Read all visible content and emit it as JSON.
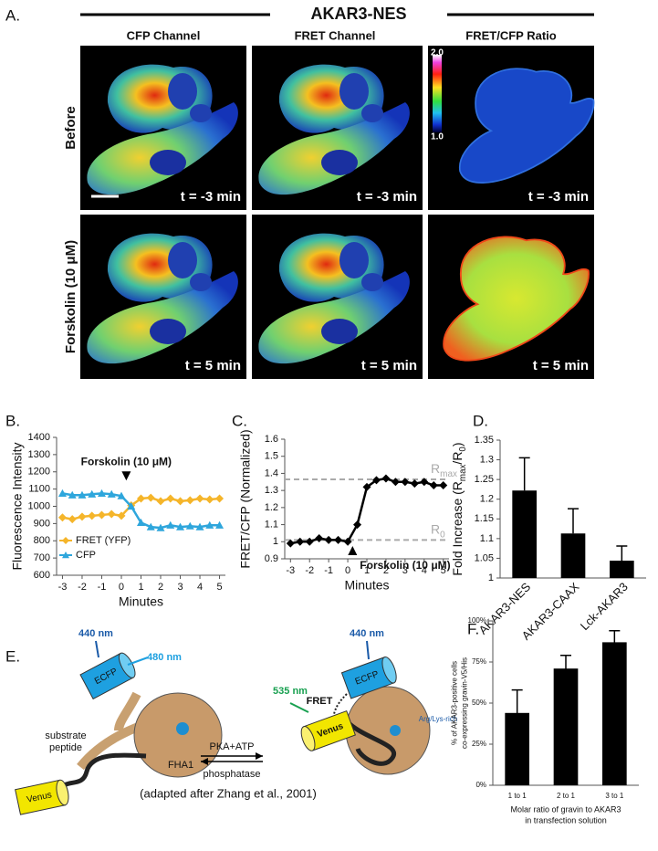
{
  "panel_a": {
    "label": "A.",
    "title": "AKAR3-NES",
    "columns": [
      "CFP Channel",
      "FRET Channel",
      "FRET/CFP Ratio"
    ],
    "rows": [
      {
        "label": "Before",
        "times": [
          "t = -3 min",
          "t = -3 min",
          "t = -3 min"
        ]
      },
      {
        "label": "Forskolin (10 μM)",
        "times": [
          "t = 5 min",
          "t = 5 min",
          "t = 5 min"
        ]
      }
    ],
    "colorbar": {
      "max": "2.0",
      "min": "1.0"
    }
  },
  "panel_e": {
    "label": "E.",
    "left_excitation": "440 nm",
    "left_donor": "ECFP",
    "left_emission": "480 nm",
    "substrate_peptide": [
      "substrate",
      "peptide"
    ],
    "domain": "FHA1",
    "left_acceptor": "Venus",
    "forward": "PKA+ATP",
    "reverse": "phosphatase",
    "right_excitation": "440 nm",
    "right_donor": "ECFP",
    "right_emission": "535 nm",
    "fret": "FRET",
    "right_acceptor": "Venus",
    "motif": "Arg/Lys-rich",
    "citation": "(adapted after Zhang et al., 2001)"
  },
  "chart_data": [
    {
      "type": "line",
      "label": "B.",
      "xlabel": "Minutes",
      "ylabel": "Fluorescence Intensity",
      "x": [
        -3,
        -2.5,
        -2,
        -1.5,
        -1,
        -0.5,
        0,
        0.5,
        1,
        1.5,
        2,
        2.5,
        3,
        3.5,
        4,
        4.5,
        5
      ],
      "series": [
        {
          "name": "FRET (YFP)",
          "color": "#f5b52a",
          "marker": "diamond",
          "values": [
            935,
            925,
            940,
            945,
            950,
            955,
            945,
            1005,
            1045,
            1050,
            1030,
            1045,
            1030,
            1035,
            1045,
            1040,
            1045
          ]
        },
        {
          "name": "CFP",
          "color": "#2ea6dc",
          "marker": "triangle",
          "values": [
            1075,
            1065,
            1065,
            1070,
            1075,
            1070,
            1060,
            1000,
            905,
            880,
            875,
            890,
            880,
            885,
            880,
            890,
            890
          ]
        }
      ],
      "xlim": [
        -3.3,
        5.3
      ],
      "xticks": [
        -3,
        -2,
        -1,
        0,
        1,
        2,
        3,
        4,
        5
      ],
      "ylim": [
        600,
        1400
      ],
      "yticks": [
        600,
        700,
        800,
        900,
        1000,
        1100,
        1200,
        1300,
        1400
      ],
      "legend": "lower left",
      "annotation": {
        "text": "Forskolin (10 μM)",
        "x": 0.25,
        "y": 1150,
        "pointing": "down"
      }
    },
    {
      "type": "line",
      "label": "C.",
      "xlabel": "Minutes",
      "ylabel": "FRET/CFP (Normalized)",
      "x": [
        -3,
        -2.5,
        -2,
        -1.5,
        -1,
        -0.5,
        0,
        0.5,
        1,
        1.5,
        2,
        2.5,
        3,
        3.5,
        4,
        4.5,
        5
      ],
      "series": [
        {
          "name": "FRET/CFP",
          "color": "#000000",
          "marker": "diamond",
          "values": [
            0.99,
            1.0,
            1.0,
            1.02,
            1.01,
            1.01,
            1.0,
            1.1,
            1.32,
            1.36,
            1.37,
            1.35,
            1.35,
            1.34,
            1.35,
            1.33,
            1.33
          ]
        }
      ],
      "xlim": [
        -3.3,
        5.3
      ],
      "xticks": [
        -3,
        -2,
        -1,
        0,
        1,
        2,
        3,
        4,
        5
      ],
      "ylim": [
        0.9,
        1.6
      ],
      "yticks": [
        0.9,
        1,
        1.1,
        1.2,
        1.3,
        1.4,
        1.5,
        1.6
      ],
      "reference_lines": [
        {
          "value": 1.365,
          "label": "R",
          "sub": "max",
          "color": "#aaaaaa"
        },
        {
          "value": 1.01,
          "label": "R",
          "sub": "0",
          "color": "#aaaaaa"
        }
      ],
      "annotation": {
        "text": "Forskolin (10 μM)",
        "x": 0.25,
        "y": 0.975,
        "pointing": "up"
      }
    },
    {
      "type": "bar",
      "label": "D.",
      "ylabel": [
        {
          "text": "Fold Increase (R"
        },
        {
          "sub": "max"
        },
        {
          "text": "/R"
        },
        {
          "sub": "0"
        },
        {
          "text": ")"
        }
      ],
      "categories": [
        "AKAR3-NES",
        "AKAR3-CAAX",
        "Lck-AKAR3"
      ],
      "values": [
        1.222,
        1.113,
        1.044
      ],
      "errors": [
        0.083,
        0.063,
        0.037
      ],
      "color": "#000000",
      "xtick_rotation": -45,
      "ylim": [
        1,
        1.35
      ],
      "yticks": [
        1,
        1.05,
        1.1,
        1.15,
        1.2,
        1.25,
        1.3,
        1.35
      ]
    },
    {
      "type": "bar",
      "label": "F.",
      "ylabel": [
        "% of AKAR3-positive cells",
        "co-expressing gravin-V5/His"
      ],
      "xlabel": [
        "Molar ratio of gravin to AKAR3",
        "in transfection solution"
      ],
      "categories": [
        "1 to 1",
        "2 to 1",
        "3 to 1"
      ],
      "values": [
        44,
        71,
        87
      ],
      "errors": [
        14,
        8,
        7
      ],
      "color": "#000000",
      "xtick_rotation": 0,
      "ylim": [
        0,
        100
      ],
      "yticks": [
        {
          "value": 0,
          "label": "0%"
        },
        {
          "value": 25,
          "label": "25%"
        },
        {
          "value": 50,
          "label": "50%"
        },
        {
          "value": 75,
          "label": "75%"
        },
        {
          "value": 100,
          "label": "100%"
        }
      ]
    }
  ]
}
